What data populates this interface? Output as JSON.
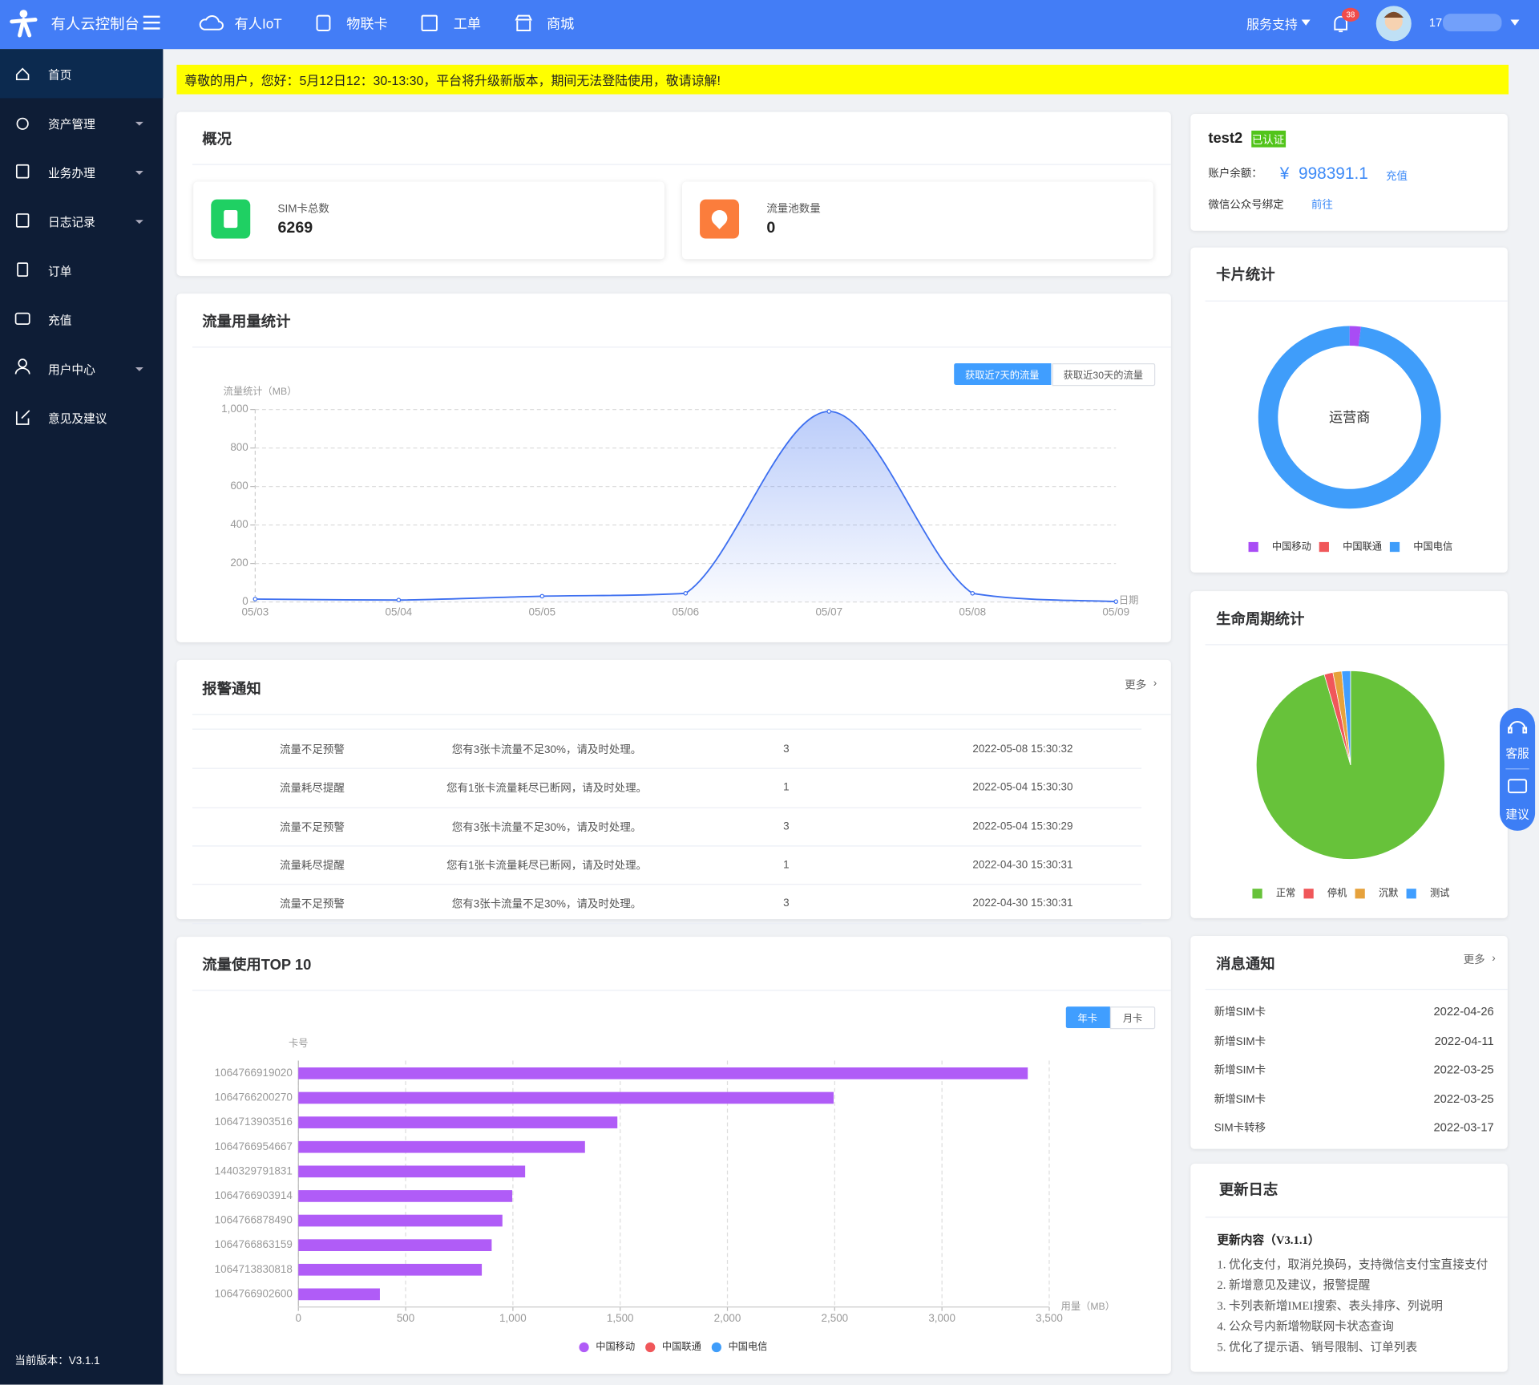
{
  "nav": {
    "brand": "有人云控制台",
    "items": [
      "有人IoT",
      "物联卡",
      "工单",
      "商城"
    ],
    "support": "服务支持",
    "badge": "38",
    "user": "17"
  },
  "sidebar": {
    "items": [
      "首页",
      "资产管理",
      "业务办理",
      "日志记录",
      "订单",
      "充值",
      "用户中心",
      "意见及建议"
    ],
    "version": "当前版本：V3.1.1"
  },
  "notice": "尊敬的用户，您好：5月12日12：30-13:30，平台将升级新版本，期间无法登陆使用，敬请谅解!",
  "overview": {
    "title": "概况",
    "stats": [
      {
        "label": "SIM卡总数",
        "value": 6269
      },
      {
        "label": "流量池数量",
        "value": 0
      }
    ]
  },
  "alarms": {
    "title": "报警通知",
    "more": "更多",
    "rows": [
      [
        "流量不足预警",
        "您有3张卡流量不足30%，请及时处理。",
        3,
        "2022-05-08 15:30:32"
      ],
      [
        "流量耗尽提醒",
        "您有1张卡流量耗尽已断网，请及时处理。",
        1,
        "2022-05-04 15:30:30"
      ],
      [
        "流量不足预警",
        "您有3张卡流量不足30%，请及时处理。",
        3,
        "2022-05-04 15:30:29"
      ],
      [
        "流量耗尽提醒",
        "您有1张卡流量耗尽已断网，请及时处理。",
        1,
        "2022-04-30 15:30:31"
      ],
      [
        "流量不足预警",
        "您有3张卡流量不足30%，请及时处理。",
        3,
        "2022-04-30 15:30:31"
      ]
    ]
  },
  "account": {
    "name": "test2",
    "verified": "已认证",
    "balance_label": "账户余额：",
    "currency": "¥",
    "balance": 998391.1,
    "recharge": "充值",
    "wechat_label": "微信公众号绑定",
    "wechat_action": "前往"
  },
  "messages": {
    "title": "消息通知",
    "more": "更多",
    "rows": [
      [
        "新增SIM卡",
        "2022-04-26"
      ],
      [
        "新增SIM卡",
        "2022-04-11"
      ],
      [
        "新增SIM卡",
        "2022-03-25"
      ],
      [
        "新增SIM卡",
        "2022-03-25"
      ],
      [
        "SIM卡转移",
        "2022-03-17"
      ]
    ]
  },
  "changelog": {
    "title": "更新日志",
    "subtitle": "更新内容（V3.1.1）",
    "items": [
      "1. 优化支付，取消兑换码，支持微信支付宝直接支付",
      "2. 新增意见及建议，报警提醒",
      "3. 卡列表新增IMEI搜索、表头排序、列说明",
      "4. 公众号内新增物联网卡状态查询",
      "5. 优化了提示语、销号限制、订单列表"
    ]
  },
  "float": [
    "客服",
    "建议"
  ],
  "chart_data": [
    {
      "type": "line",
      "title": "流量用量统计",
      "buttons": [
        "获取近7天的流量",
        "获取近30天的流量"
      ],
      "y_label": "流量统计（MB）",
      "x_label": "日期",
      "categories": [
        "05/03",
        "05/04",
        "05/05",
        "05/06",
        "05/07",
        "05/08",
        "05/09"
      ],
      "values": [
        15,
        10,
        30,
        45,
        990,
        45,
        2
      ],
      "color": "#3d6ff0",
      "ylim": [
        0,
        1000
      ],
      "yticks": [
        0,
        200,
        400,
        600,
        800,
        {
          "value": 1000,
          "label": "1,000"
        }
      ],
      "grid": true
    },
    {
      "type": "donut",
      "title": "卡片统计",
      "center_label": "运营商",
      "categories": [
        "中国移动",
        "中国联通",
        "中国电信"
      ],
      "values": [
        2,
        0,
        98
      ],
      "colors": [
        "#a94cf5",
        "#f0575a",
        "#3f9dfa"
      ]
    },
    {
      "type": "pie",
      "title": "生命周期统计",
      "categories": [
        "正常",
        "停机",
        "沉默",
        "测试"
      ],
      "values": [
        95.5,
        1.5,
        1.5,
        1.5
      ],
      "colors": [
        "#67c23a",
        "#f0575a",
        "#e6a23c",
        "#409eff"
      ]
    },
    {
      "type": "bar",
      "orientation": "horizontal",
      "title": "流量使用TOP 10",
      "buttons": [
        "年卡",
        "月卡"
      ],
      "y_label": "卡号",
      "x_label": "用量（MB）",
      "categories": [
        "1064766919020",
        "1064766200270",
        "1064713903516",
        "1064766954667",
        "1440329791831",
        "1064766903914",
        "1064766878490",
        "1064766863159",
        "1064713830818",
        "1064766902600"
      ],
      "series": [
        {
          "name": "中国移动",
          "color": "#b05cf7",
          "values": [
            3400,
            2495,
            1487,
            1336,
            1057,
            997,
            951,
            901,
            855,
            380
          ]
        },
        {
          "name": "中国联通",
          "color": "#f0575a",
          "values": [
            null,
            null,
            null,
            null,
            null,
            null,
            null,
            null,
            null,
            null
          ]
        },
        {
          "name": "中国电信",
          "color": "#3f9dfa",
          "values": [
            null,
            null,
            null,
            null,
            null,
            null,
            null,
            null,
            null,
            null
          ]
        }
      ],
      "xlim": [
        0,
        3500
      ],
      "xticks": [
        0,
        500,
        {
          "value": 1000,
          "label": "1,000"
        },
        {
          "value": 1500,
          "label": "1,500"
        },
        {
          "value": 2000,
          "label": "2,000"
        },
        {
          "value": 2500,
          "label": "2,500"
        },
        {
          "value": 3000,
          "label": "3,000"
        },
        {
          "value": 3500,
          "label": "3,500"
        }
      ],
      "grid": true
    }
  ]
}
